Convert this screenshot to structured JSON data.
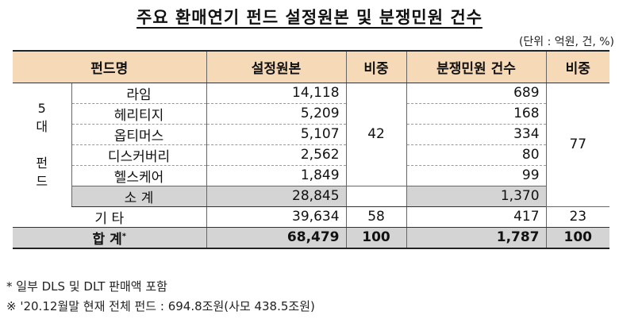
{
  "title": "주요 환매연기 펀드 설정원본 및 분쟁민원 건수",
  "unit_note": "(단위 : 억원, 건, %)",
  "headers": {
    "fund_name": "펀드명",
    "principal": "설정원본",
    "ratio1": "비중",
    "complaints": "분쟁민원 건수",
    "ratio2": "비중"
  },
  "group_label": "5\n대\n\n펀\n드",
  "funds": [
    {
      "name": "라임",
      "principal": "14,118",
      "complaints": "689"
    },
    {
      "name": "헤리티지",
      "principal": "5,209",
      "complaints": "168"
    },
    {
      "name": "옵티머스",
      "principal": "5,107",
      "complaints": "334"
    },
    {
      "name": "디스커버리",
      "principal": "2,562",
      "complaints": "80"
    },
    {
      "name": "헬스케어",
      "principal": "1,849",
      "complaints": "99"
    }
  ],
  "top5_ratio_principal": "42",
  "top5_ratio_complaints": "77",
  "subtotal": {
    "label": "소  계",
    "principal": "28,845",
    "complaints": "1,370"
  },
  "others": {
    "label": "기  타",
    "principal": "39,634",
    "ratio1": "58",
    "complaints": "417",
    "ratio2": "23"
  },
  "total": {
    "label": "합  계",
    "mark": "*",
    "principal": "68,479",
    "ratio1": "100",
    "complaints": "1,787",
    "ratio2": "100"
  },
  "footnotes": [
    "* 일부 DLS 및 DLT 판매액 포함",
    "※ '20.12월말 현재 전체 펀드 : 694.8조원(사모 438.5조원)"
  ]
}
